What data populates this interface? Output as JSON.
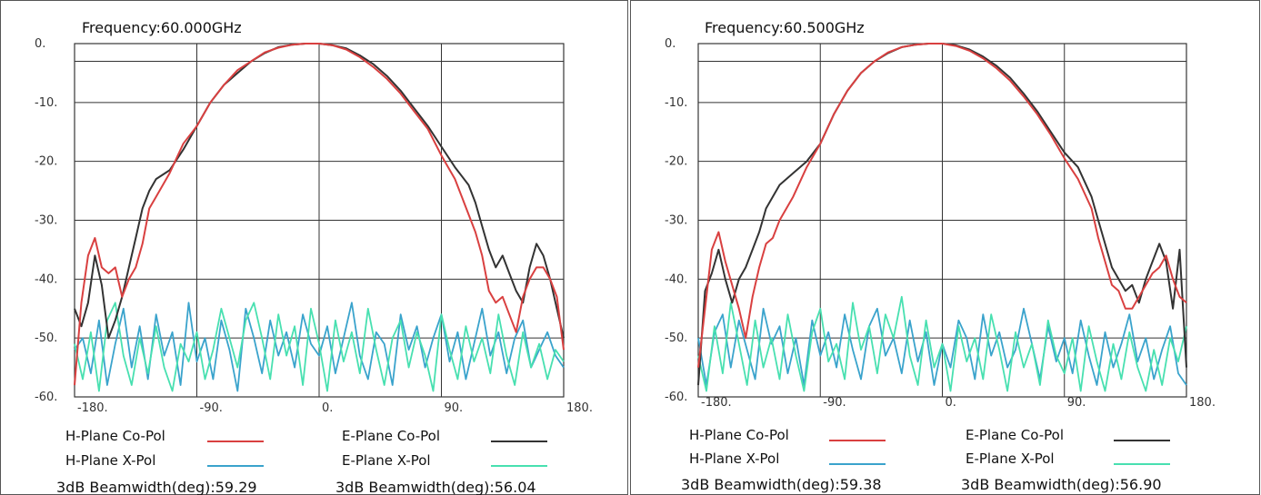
{
  "colors": {
    "h_co": "#d94040",
    "e_co": "#333333",
    "h_x": "#3aa3cc",
    "e_x": "#48e0b0"
  },
  "chart_data": [
    {
      "type": "line",
      "title": "Frequency:60.000GHz",
      "xlim": [
        -180,
        180
      ],
      "ylim": [
        -60,
        0
      ],
      "xticks": [
        -180,
        -90,
        0,
        90,
        180
      ],
      "xtick_labels": [
        "-180.",
        "-90.",
        "0.",
        "90.",
        "180."
      ],
      "yticks": [
        0,
        -10,
        -20,
        -30,
        -40,
        -50,
        -60
      ],
      "ytick_labels": [
        "0.",
        "-10.",
        "-20.",
        "-30.",
        "-40.",
        "-50.",
        "-60."
      ],
      "grid": true,
      "legend": [
        {
          "label": "H-Plane Co-Pol",
          "series": "h_co"
        },
        {
          "label": "E-Plane Co-Pol",
          "series": "e_co"
        },
        {
          "label": "H-Plane X-Pol",
          "series": "h_x"
        },
        {
          "label": "E-Plane X-Pol",
          "series": "e_x"
        }
      ],
      "beamwidth": {
        "h": "3dB Beamwidth(deg):59.29",
        "e": "3dB Beamwidth(deg):56.04"
      },
      "series": {
        "h_co": {
          "x": [
            -180,
            -175,
            -170,
            -165,
            -160,
            -155,
            -150,
            -145,
            -140,
            -135,
            -130,
            -125,
            -120,
            -110,
            -100,
            -90,
            -80,
            -70,
            -60,
            -50,
            -40,
            -30,
            -20,
            -10,
            0,
            10,
            20,
            30,
            40,
            50,
            60,
            70,
            80,
            90,
            100,
            110,
            115,
            120,
            125,
            130,
            135,
            140,
            145,
            150,
            155,
            160,
            165,
            170,
            175,
            180
          ],
          "y": [
            -58,
            -44,
            -36,
            -33,
            -38,
            -39,
            -38,
            -43,
            -40,
            -38,
            -34,
            -28,
            -26,
            -22,
            -17,
            -14,
            -10,
            -7,
            -4.5,
            -3,
            -1.5,
            -0.7,
            -0.2,
            0,
            0,
            -0.3,
            -1,
            -2.3,
            -4,
            -6,
            -8.5,
            -11.5,
            -14.5,
            -19,
            -23,
            -29,
            -32,
            -36,
            -42,
            -44,
            -43,
            -46,
            -49,
            -43,
            -40,
            -38,
            -38,
            -40,
            -43,
            -52
          ]
        },
        "e_co": {
          "x": [
            -180,
            -175,
            -170,
            -165,
            -160,
            -155,
            -150,
            -145,
            -140,
            -135,
            -130,
            -125,
            -120,
            -110,
            -100,
            -90,
            -80,
            -70,
            -60,
            -50,
            -40,
            -30,
            -20,
            -10,
            0,
            10,
            20,
            30,
            40,
            50,
            60,
            70,
            80,
            90,
            100,
            110,
            115,
            120,
            125,
            130,
            135,
            140,
            145,
            150,
            155,
            160,
            165,
            170,
            175,
            180
          ],
          "y": [
            -45,
            -48,
            -44,
            -36,
            -41,
            -50,
            -47,
            -43,
            -38,
            -33,
            -28,
            -25,
            -23,
            -21.5,
            -18,
            -14,
            -10,
            -7,
            -5,
            -3,
            -1.6,
            -0.6,
            -0.2,
            0,
            0,
            -0.3,
            -0.8,
            -2,
            -3.5,
            -5.5,
            -8,
            -11,
            -14,
            -17.5,
            -21,
            -24,
            -27,
            -31,
            -35,
            -38,
            -36,
            -39,
            -42,
            -44,
            -38,
            -34,
            -36,
            -40,
            -45,
            -50
          ]
        },
        "h_x": {
          "x": [
            -180,
            -174,
            -168,
            -162,
            -156,
            -150,
            -144,
            -138,
            -132,
            -126,
            -120,
            -114,
            -108,
            -102,
            -96,
            -90,
            -84,
            -78,
            -72,
            -66,
            -60,
            -54,
            -48,
            -42,
            -36,
            -30,
            -24,
            -18,
            -12,
            -6,
            0,
            6,
            12,
            18,
            24,
            30,
            36,
            42,
            48,
            54,
            60,
            66,
            72,
            78,
            84,
            90,
            96,
            102,
            108,
            114,
            120,
            126,
            132,
            138,
            144,
            150,
            156,
            162,
            168,
            174,
            180
          ],
          "y": [
            -52,
            -50,
            -56,
            -47,
            -58,
            -51,
            -45,
            -55,
            -48,
            -57,
            -46,
            -53,
            -49,
            -58,
            -44,
            -54,
            -50,
            -57,
            -47,
            -52,
            -59,
            -45,
            -50,
            -56,
            -47,
            -53,
            -49,
            -55,
            -46,
            -51,
            -53,
            -48,
            -56,
            -50,
            -44,
            -53,
            -57,
            -49,
            -51,
            -58,
            -46,
            -52,
            -48,
            -55,
            -50,
            -46,
            -54,
            -49,
            -57,
            -51,
            -45,
            -53,
            -49,
            -56,
            -50,
            -47,
            -55,
            -52,
            -49,
            -53,
            -55
          ]
        },
        "e_x": {
          "x": [
            -180,
            -174,
            -168,
            -162,
            -156,
            -150,
            -144,
            -138,
            -132,
            -126,
            -120,
            -114,
            -108,
            -102,
            -96,
            -90,
            -84,
            -78,
            -72,
            -66,
            -60,
            -54,
            -48,
            -42,
            -36,
            -30,
            -24,
            -18,
            -12,
            -6,
            0,
            6,
            12,
            18,
            24,
            30,
            36,
            42,
            48,
            54,
            60,
            66,
            72,
            78,
            84,
            90,
            96,
            102,
            108,
            114,
            120,
            126,
            132,
            138,
            144,
            150,
            156,
            162,
            168,
            174,
            180
          ],
          "y": [
            -51,
            -57,
            -49,
            -59,
            -47,
            -44,
            -53,
            -58,
            -50,
            -56,
            -48,
            -55,
            -59,
            -51,
            -54,
            -49,
            -57,
            -52,
            -45,
            -50,
            -55,
            -47,
            -44,
            -50,
            -57,
            -46,
            -53,
            -48,
            -58,
            -45,
            -51,
            -59,
            -47,
            -54,
            -49,
            -56,
            -45,
            -52,
            -58,
            -50,
            -47,
            -55,
            -49,
            -53,
            -59,
            -46,
            -52,
            -57,
            -48,
            -54,
            -50,
            -56,
            -46,
            -53,
            -58,
            -49,
            -55,
            -51,
            -57,
            -52,
            -54
          ]
        }
      }
    },
    {
      "type": "line",
      "title": "Frequency:60.500GHz",
      "xlim": [
        -180,
        180
      ],
      "ylim": [
        -60,
        0
      ],
      "xticks": [
        -180,
        -90,
        0,
        90,
        180
      ],
      "xtick_labels": [
        "-180.",
        "-90.",
        "0.",
        "90.",
        "180."
      ],
      "yticks": [
        0,
        -10,
        -20,
        -30,
        -40,
        -50,
        -60
      ],
      "ytick_labels": [
        "0.",
        "-10.",
        "-20.",
        "-30.",
        "-40.",
        "-50.",
        "-60."
      ],
      "grid": true,
      "legend": [
        {
          "label": "H-Plane Co-Pol",
          "series": "h_co"
        },
        {
          "label": "E-Plane Co-Pol",
          "series": "e_co"
        },
        {
          "label": "H-Plane X-Pol",
          "series": "h_x"
        },
        {
          "label": "E-Plane X-Pol",
          "series": "e_x"
        }
      ],
      "beamwidth": {
        "h": "3dB Beamwidth(deg):59.38",
        "e": "3dB Beamwidth(deg):56.90"
      },
      "series": {
        "h_co": {
          "x": [
            -180,
            -175,
            -170,
            -165,
            -160,
            -155,
            -150,
            -145,
            -140,
            -135,
            -130,
            -125,
            -120,
            -110,
            -100,
            -90,
            -80,
            -70,
            -60,
            -50,
            -40,
            -30,
            -20,
            -10,
            0,
            10,
            20,
            30,
            40,
            50,
            60,
            70,
            80,
            90,
            100,
            110,
            115,
            120,
            125,
            130,
            135,
            140,
            145,
            150,
            155,
            160,
            165,
            170,
            175,
            180
          ],
          "y": [
            -55,
            -45,
            -35,
            -32,
            -37,
            -41,
            -45,
            -50,
            -43,
            -38,
            -34,
            -33,
            -30,
            -26,
            -21,
            -17,
            -12,
            -8,
            -5,
            -3,
            -1.5,
            -0.6,
            -0.2,
            0,
            0,
            -0.4,
            -1.2,
            -2.5,
            -4.2,
            -6.3,
            -9,
            -12,
            -15.5,
            -19.5,
            -23,
            -28,
            -33,
            -37,
            -41,
            -42,
            -45,
            -45,
            -43,
            -41,
            -39,
            -38,
            -36,
            -40,
            -43,
            -44
          ]
        },
        "e_co": {
          "x": [
            -180,
            -175,
            -170,
            -165,
            -160,
            -155,
            -150,
            -145,
            -140,
            -135,
            -130,
            -125,
            -120,
            -110,
            -100,
            -90,
            -80,
            -70,
            -60,
            -50,
            -40,
            -30,
            -20,
            -10,
            0,
            10,
            20,
            30,
            40,
            50,
            60,
            70,
            80,
            90,
            100,
            110,
            115,
            120,
            125,
            130,
            135,
            140,
            145,
            150,
            155,
            160,
            165,
            170,
            175,
            180
          ],
          "y": [
            -58,
            -42,
            -39,
            -35,
            -40,
            -44,
            -40,
            -38,
            -35,
            -32,
            -28,
            -26,
            -24,
            -22,
            -20,
            -17,
            -12,
            -8,
            -5,
            -3,
            -1.6,
            -0.6,
            -0.2,
            0,
            0,
            -0.3,
            -1,
            -2.2,
            -3.8,
            -5.8,
            -8.5,
            -11.5,
            -15,
            -18.5,
            -21,
            -26,
            -30,
            -34,
            -38,
            -40,
            -42,
            -41,
            -44,
            -40,
            -37,
            -34,
            -37,
            -45,
            -35,
            -55
          ]
        },
        "h_x": {
          "x": [
            -180,
            -174,
            -168,
            -162,
            -156,
            -150,
            -144,
            -138,
            -132,
            -126,
            -120,
            -114,
            -108,
            -102,
            -96,
            -90,
            -84,
            -78,
            -72,
            -66,
            -60,
            -54,
            -48,
            -42,
            -36,
            -30,
            -24,
            -18,
            -12,
            -6,
            0,
            6,
            12,
            18,
            24,
            30,
            36,
            42,
            48,
            54,
            60,
            66,
            72,
            78,
            84,
            90,
            96,
            102,
            108,
            114,
            120,
            126,
            132,
            138,
            144,
            150,
            156,
            162,
            168,
            174,
            180
          ],
          "y": [
            -50,
            -58,
            -49,
            -46,
            -55,
            -47,
            -52,
            -57,
            -45,
            -51,
            -48,
            -56,
            -50,
            -58,
            -47,
            -53,
            -49,
            -55,
            -46,
            -52,
            -57,
            -48,
            -45,
            -53,
            -50,
            -56,
            -47,
            -54,
            -49,
            -58,
            -51,
            -55,
            -47,
            -50,
            -57,
            -46,
            -53,
            -49,
            -55,
            -52,
            -45,
            -51,
            -57,
            -48,
            -54,
            -50,
            -56,
            -47,
            -53,
            -58,
            -49,
            -55,
            -51,
            -46,
            -54,
            -50,
            -57,
            -52,
            -48,
            -56,
            -58
          ]
        },
        "e_x": {
          "x": [
            -180,
            -174,
            -168,
            -162,
            -156,
            -150,
            -144,
            -138,
            -132,
            -126,
            -120,
            -114,
            -108,
            -102,
            -96,
            -90,
            -84,
            -78,
            -72,
            -66,
            -60,
            -54,
            -48,
            -42,
            -36,
            -30,
            -24,
            -18,
            -12,
            -6,
            0,
            6,
            12,
            18,
            24,
            30,
            36,
            42,
            48,
            54,
            60,
            66,
            72,
            78,
            84,
            90,
            96,
            102,
            108,
            114,
            120,
            126,
            132,
            138,
            144,
            150,
            156,
            162,
            168,
            174,
            180
          ],
          "y": [
            -53,
            -59,
            -48,
            -56,
            -44,
            -51,
            -58,
            -47,
            -55,
            -50,
            -57,
            -46,
            -53,
            -59,
            -49,
            -45,
            -54,
            -51,
            -57,
            -44,
            -52,
            -48,
            -56,
            -46,
            -50,
            -43,
            -53,
            -58,
            -47,
            -55,
            -51,
            -59,
            -48,
            -54,
            -50,
            -57,
            -46,
            -52,
            -59,
            -49,
            -55,
            -51,
            -58,
            -47,
            -53,
            -56,
            -50,
            -59,
            -48,
            -54,
            -59,
            -51,
            -57,
            -49,
            -55,
            -59,
            -52,
            -58,
            -50,
            -54,
            -48
          ]
        }
      }
    }
  ]
}
